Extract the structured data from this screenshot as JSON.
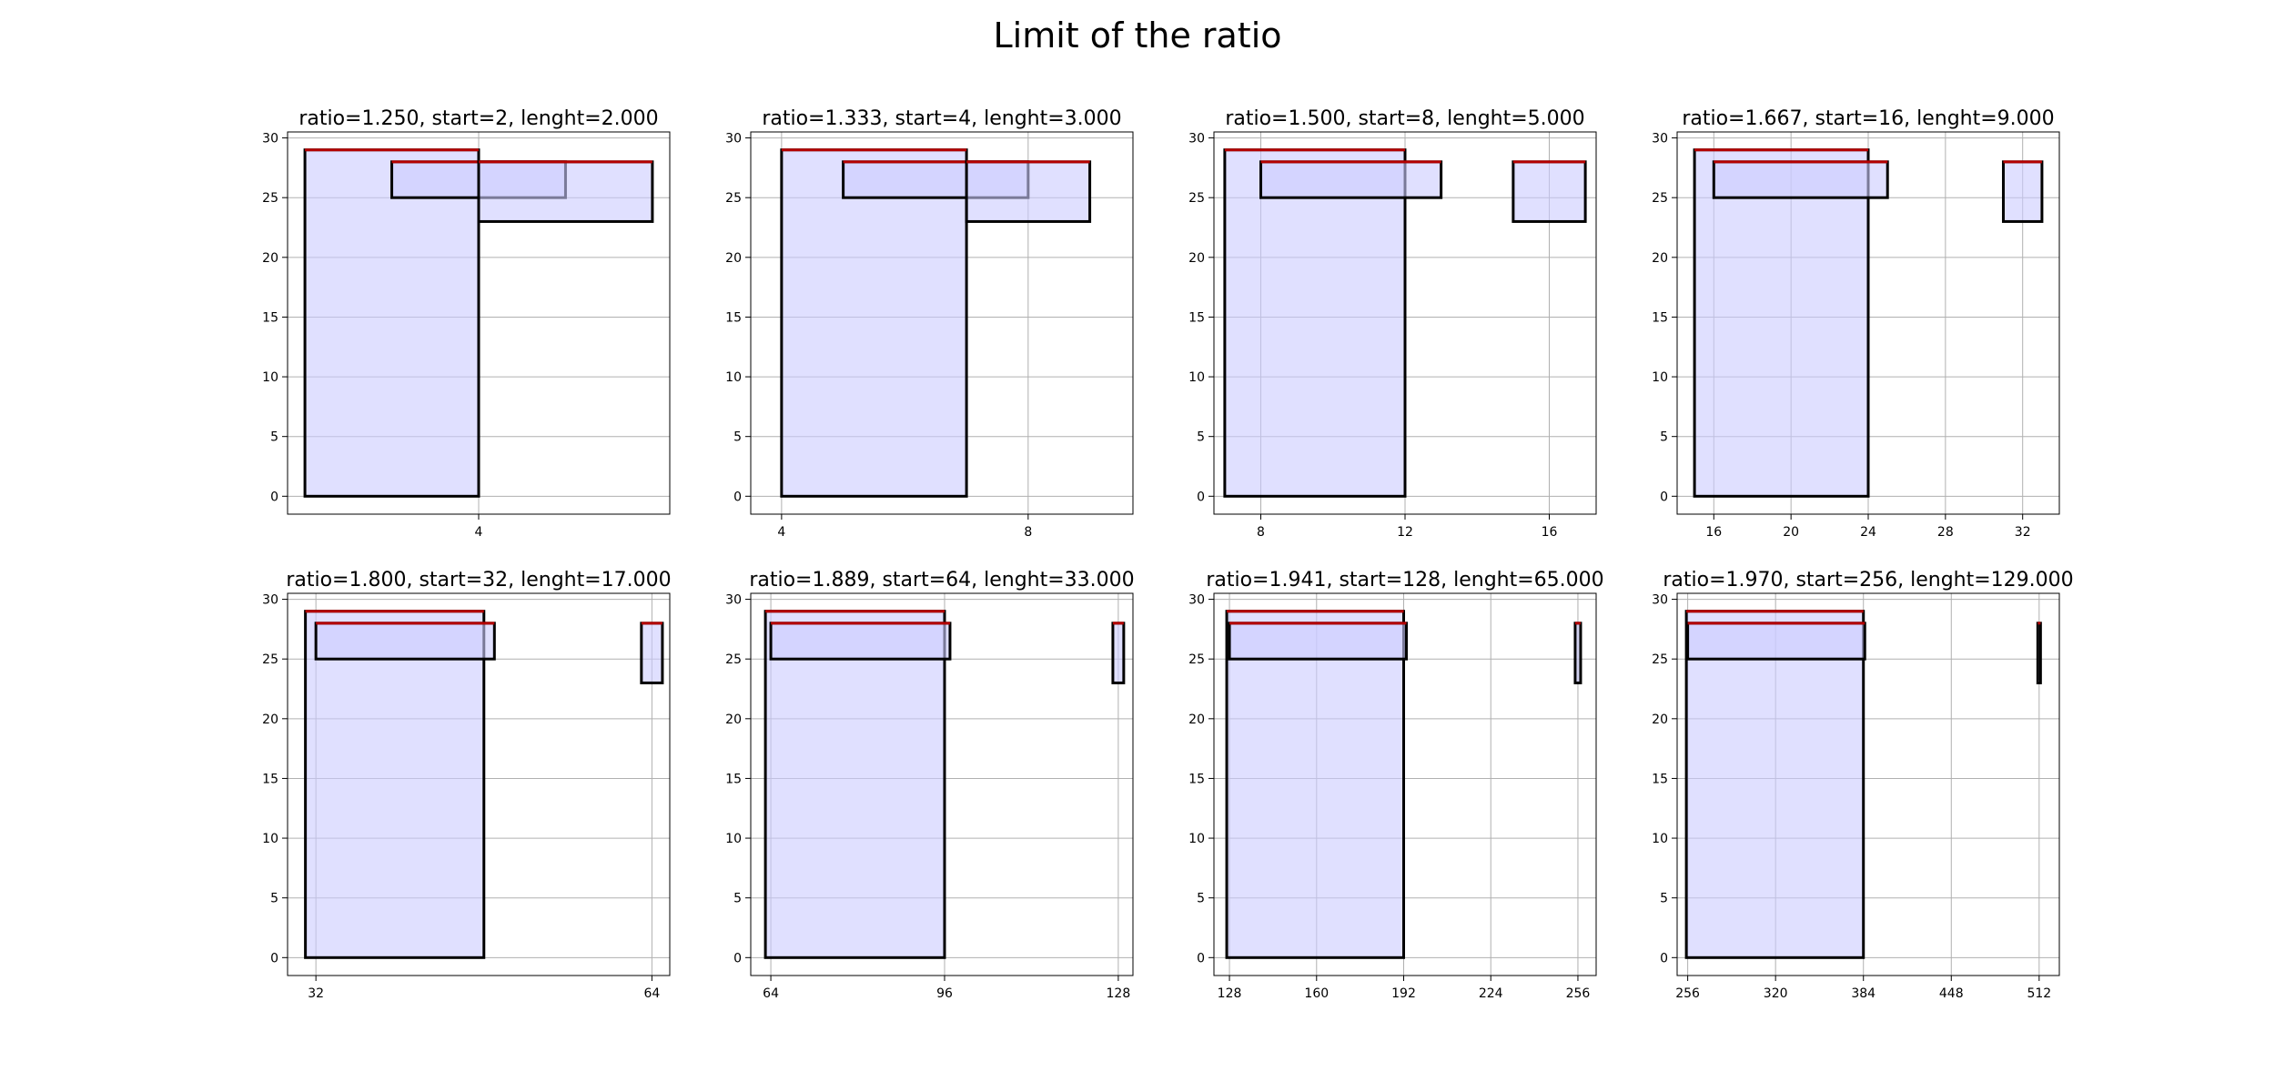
{
  "figure": {
    "title": "Limit of the ratio",
    "colors": {
      "fill": "#ccccff",
      "overlap_fill": "#a3a3ff",
      "edge": "#000000",
      "top_edge": "#b40000",
      "grid": "#b0b0b0"
    }
  },
  "chart_data": [
    {
      "type": "bar",
      "title": "ratio=1.250, start=2, lenght=2.000",
      "xlim": [
        1.8,
        6.2
      ],
      "ylim": [
        -1.5,
        30.5
      ],
      "xticks": [
        4
      ],
      "yticks": [
        0,
        5,
        10,
        15,
        20,
        25,
        30
      ],
      "grid": true,
      "rects": [
        {
          "x0": 2,
          "x1": 4,
          "y0": 0,
          "y1": 29
        },
        {
          "x0": 3,
          "x1": 5,
          "y0": 25,
          "y1": 28
        },
        {
          "x0": 4,
          "x1": 6,
          "y0": 23,
          "y1": 28
        }
      ]
    },
    {
      "type": "bar",
      "title": "ratio=1.333, start=4, lenght=3.000",
      "xlim": [
        3.5,
        9.7
      ],
      "ylim": [
        -1.5,
        30.5
      ],
      "xticks": [
        4,
        8
      ],
      "yticks": [
        0,
        5,
        10,
        15,
        20,
        25,
        30
      ],
      "grid": true,
      "rects": [
        {
          "x0": 4,
          "x1": 7,
          "y0": 0,
          "y1": 29
        },
        {
          "x0": 5,
          "x1": 8,
          "y0": 25,
          "y1": 28
        },
        {
          "x0": 7,
          "x1": 9,
          "y0": 23,
          "y1": 28
        }
      ]
    },
    {
      "type": "bar",
      "title": "ratio=1.500, start=8, lenght=5.000",
      "xlim": [
        6.7,
        17.3
      ],
      "ylim": [
        -1.5,
        30.5
      ],
      "xticks": [
        8,
        12,
        16
      ],
      "yticks": [
        0,
        5,
        10,
        15,
        20,
        25,
        30
      ],
      "grid": true,
      "rects": [
        {
          "x0": 7,
          "x1": 12,
          "y0": 0,
          "y1": 29
        },
        {
          "x0": 8,
          "x1": 13,
          "y0": 25,
          "y1": 28
        },
        {
          "x0": 15,
          "x1": 17,
          "y0": 23,
          "y1": 28
        }
      ]
    },
    {
      "type": "bar",
      "title": "ratio=1.667, start=16, lenght=9.000",
      "xlim": [
        14.1,
        33.9
      ],
      "ylim": [
        -1.5,
        30.5
      ],
      "xticks": [
        16,
        20,
        24,
        28,
        32
      ],
      "yticks": [
        0,
        5,
        10,
        15,
        20,
        25,
        30
      ],
      "grid": true,
      "rects": [
        {
          "x0": 15,
          "x1": 24,
          "y0": 0,
          "y1": 29
        },
        {
          "x0": 16,
          "x1": 25,
          "y0": 25,
          "y1": 28
        },
        {
          "x0": 31,
          "x1": 33,
          "y0": 23,
          "y1": 28
        }
      ]
    },
    {
      "type": "bar",
      "title": "ratio=1.800, start=32, lenght=17.000",
      "xlim": [
        29.3,
        65.7
      ],
      "ylim": [
        -1.5,
        30.5
      ],
      "xticks": [
        32,
        64
      ],
      "yticks": [
        0,
        5,
        10,
        15,
        20,
        25,
        30
      ],
      "grid": true,
      "rects": [
        {
          "x0": 31,
          "x1": 48,
          "y0": 0,
          "y1": 29
        },
        {
          "x0": 32,
          "x1": 49,
          "y0": 25,
          "y1": 28
        },
        {
          "x0": 63,
          "x1": 65,
          "y0": 23,
          "y1": 28
        }
      ]
    },
    {
      "type": "bar",
      "title": "ratio=1.889, start=64, lenght=33.000",
      "xlim": [
        60.3,
        130.7
      ],
      "ylim": [
        -1.5,
        30.5
      ],
      "xticks": [
        64,
        96,
        128
      ],
      "yticks": [
        0,
        5,
        10,
        15,
        20,
        25,
        30
      ],
      "grid": true,
      "rects": [
        {
          "x0": 63,
          "x1": 96,
          "y0": 0,
          "y1": 29
        },
        {
          "x0": 64,
          "x1": 97,
          "y0": 25,
          "y1": 28
        },
        {
          "x0": 127,
          "x1": 129,
          "y0": 23,
          "y1": 28
        }
      ]
    },
    {
      "type": "bar",
      "title": "ratio=1.941, start=128, lenght=65.000",
      "xlim": [
        122.3,
        262.7
      ],
      "ylim": [
        -1.5,
        30.5
      ],
      "xticks": [
        128,
        160,
        192,
        224,
        256
      ],
      "yticks": [
        0,
        5,
        10,
        15,
        20,
        25,
        30
      ],
      "grid": true,
      "rects": [
        {
          "x0": 127,
          "x1": 192,
          "y0": 0,
          "y1": 29
        },
        {
          "x0": 128,
          "x1": 193,
          "y0": 25,
          "y1": 28
        },
        {
          "x0": 255,
          "x1": 257,
          "y0": 23,
          "y1": 28
        }
      ]
    },
    {
      "type": "bar",
      "title": "ratio=1.970, start=256, lenght=129.000",
      "xlim": [
        248.3,
        526.7
      ],
      "ylim": [
        -1.5,
        30.5
      ],
      "xticks": [
        256,
        320,
        384,
        448,
        512
      ],
      "yticks": [
        0,
        5,
        10,
        15,
        20,
        25,
        30
      ],
      "grid": true,
      "rects": [
        {
          "x0": 255,
          "x1": 384,
          "y0": 0,
          "y1": 29
        },
        {
          "x0": 256,
          "x1": 385,
          "y0": 25,
          "y1": 28
        },
        {
          "x0": 511,
          "x1": 513,
          "y0": 23,
          "y1": 28
        }
      ]
    }
  ]
}
